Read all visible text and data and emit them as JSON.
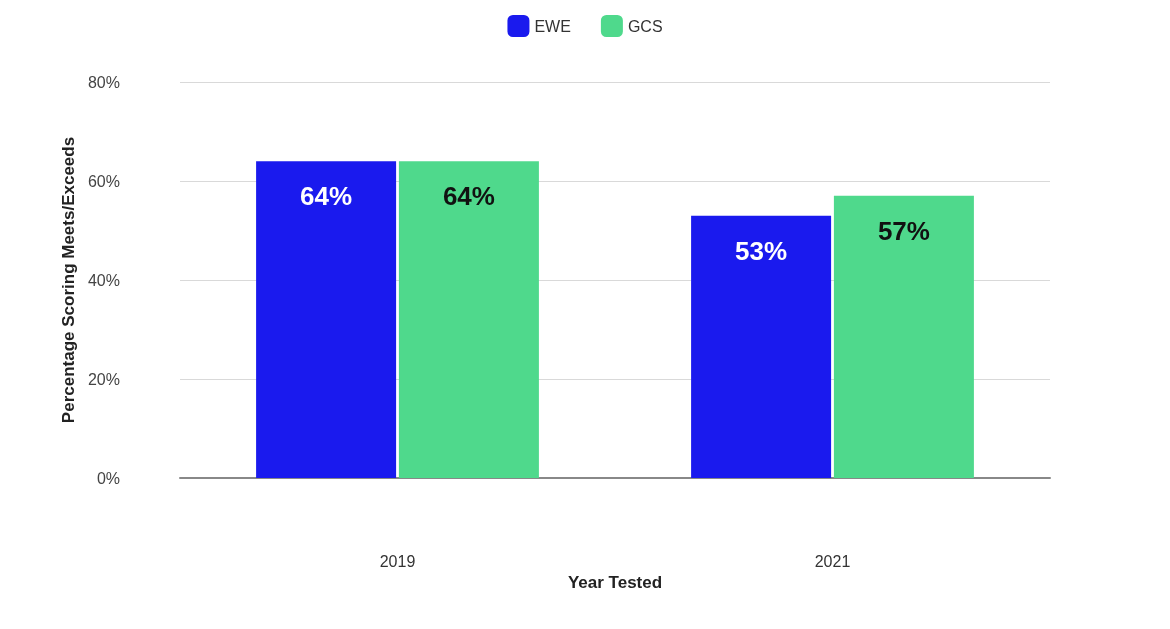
{
  "chart_data": {
    "type": "bar",
    "xlabel": "Year Tested",
    "ylabel": "Percentage Scoring Meets/Exceeds",
    "categories": [
      "2019",
      "2021"
    ],
    "series": [
      {
        "name": "EWE",
        "color": "#1a1aee",
        "values": [
          64,
          53
        ],
        "value_labels": [
          "64%",
          "53%"
        ]
      },
      {
        "name": "GCS",
        "color": "#4fd98c",
        "values": [
          64,
          57
        ],
        "value_labels": [
          "64%",
          "57%"
        ]
      }
    ],
    "ylim": [
      0,
      80
    ],
    "yticks": [
      {
        "value": 0,
        "label": "0%"
      },
      {
        "value": 20,
        "label": "20%"
      },
      {
        "value": 40,
        "label": "40%"
      },
      {
        "value": 60,
        "label": "60%"
      },
      {
        "value": 80,
        "label": "80%"
      }
    ],
    "grid": "y",
    "legend": "top"
  }
}
